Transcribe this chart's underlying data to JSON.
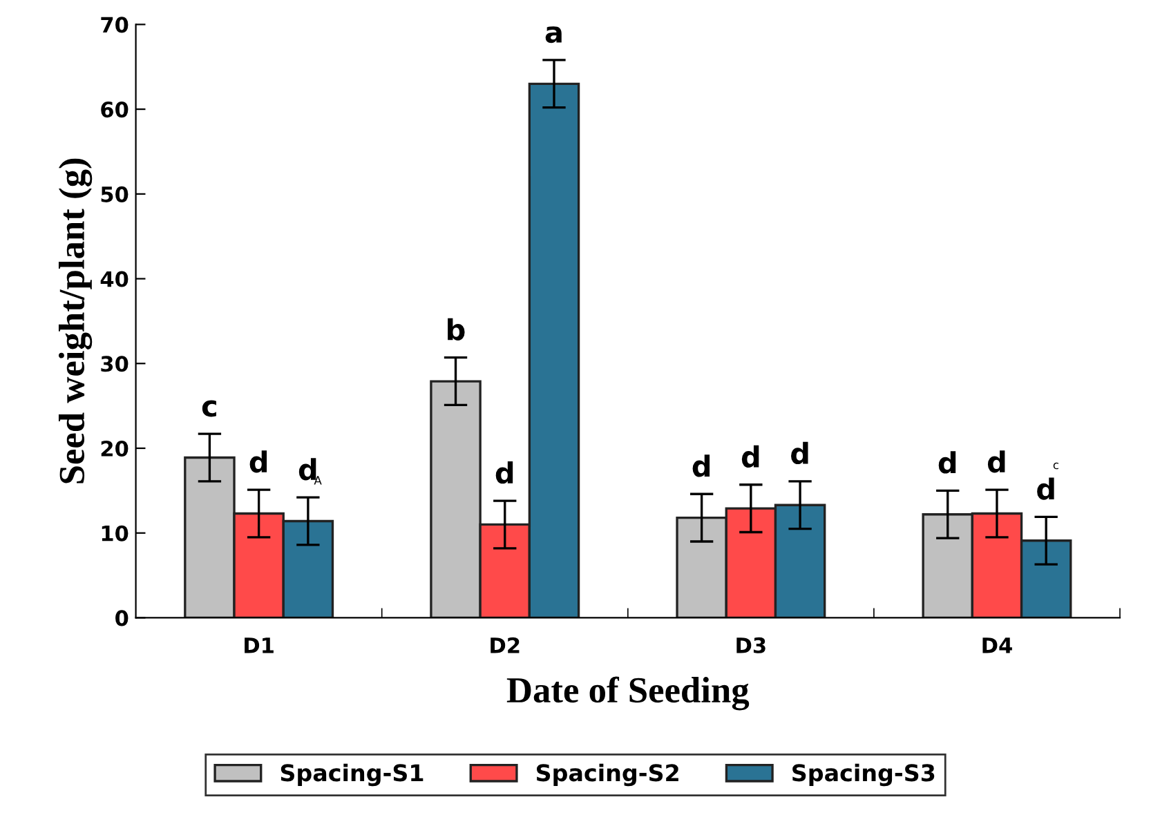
{
  "chart_data": {
    "type": "bar",
    "xlabel": "Date of Seeding",
    "ylabel": "Seed weight/plant (g)",
    "categories": [
      "D1",
      "D2",
      "D3",
      "D4"
    ],
    "series": [
      {
        "name": "Spacing-S1",
        "color": "#c0c0c0",
        "values": [
          18.9,
          27.9,
          11.8,
          12.2
        ],
        "errors": [
          2.8,
          2.8,
          2.8,
          2.8
        ],
        "value_labels": [
          "c",
          "b",
          "d",
          "d"
        ]
      },
      {
        "name": "Spacing-S2",
        "color": "#ff4a4a",
        "values": [
          12.3,
          11.0,
          12.9,
          12.3
        ],
        "errors": [
          2.8,
          2.8,
          2.8,
          2.8
        ],
        "value_labels": [
          "d",
          "d",
          "d",
          "d"
        ]
      },
      {
        "name": "Spacing-S3",
        "color": "#2a7394",
        "values": [
          11.4,
          63.0,
          13.3,
          9.1
        ],
        "errors": [
          2.8,
          2.8,
          2.8,
          2.8
        ],
        "value_labels": [
          "d",
          "a",
          "d",
          "d"
        ]
      }
    ],
    "annotations": [
      "A",
      "c"
    ],
    "ylim": [
      0,
      70
    ],
    "yticks": [
      0,
      10,
      20,
      30,
      40,
      50,
      60,
      70
    ],
    "grid": false,
    "legend": "bottom"
  }
}
